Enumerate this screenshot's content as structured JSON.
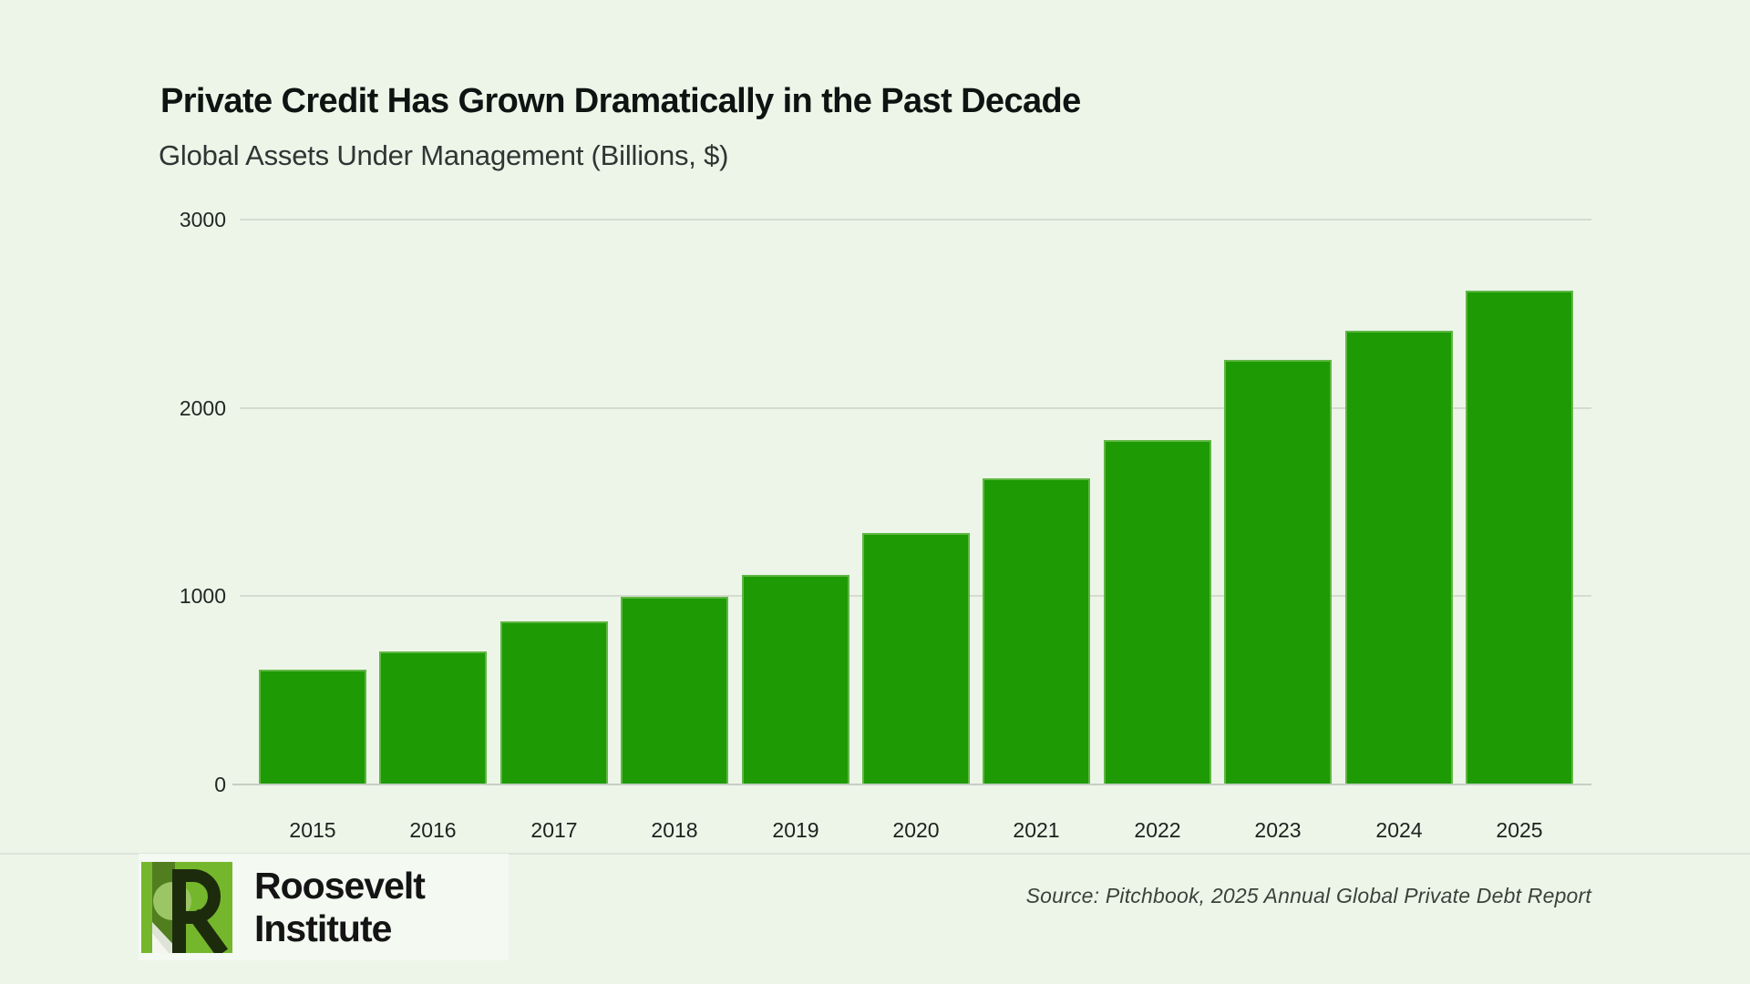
{
  "chart_data": {
    "type": "bar",
    "title": "Private Credit Has Grown Dramatically in the Past Decade",
    "subtitle": "Global Assets Under Management (Billions, $)",
    "categories": [
      "2015",
      "2016",
      "2017",
      "2018",
      "2019",
      "2020",
      "2021",
      "2022",
      "2023",
      "2024",
      "2025"
    ],
    "values": [
      605,
      700,
      860,
      990,
      1110,
      1330,
      1620,
      1825,
      2250,
      2405,
      2620
    ],
    "xlabel": "",
    "ylabel": "",
    "ylim": [
      0,
      3000
    ],
    "yticks": [
      0,
      1000,
      2000,
      3000
    ],
    "grid": true,
    "legend": "none",
    "bar_color": "#1d9a04"
  },
  "colors": {
    "background": "#edf5e9",
    "bar": "#1d9a04",
    "bar_edge": "#5fb743",
    "logo_green": "#75b72c"
  },
  "footer": {
    "source": "Source: Pitchbook, 2025 Annual Global Private Debt Report",
    "logo": {
      "line1": "Roosevelt",
      "line2": "Institute"
    }
  }
}
